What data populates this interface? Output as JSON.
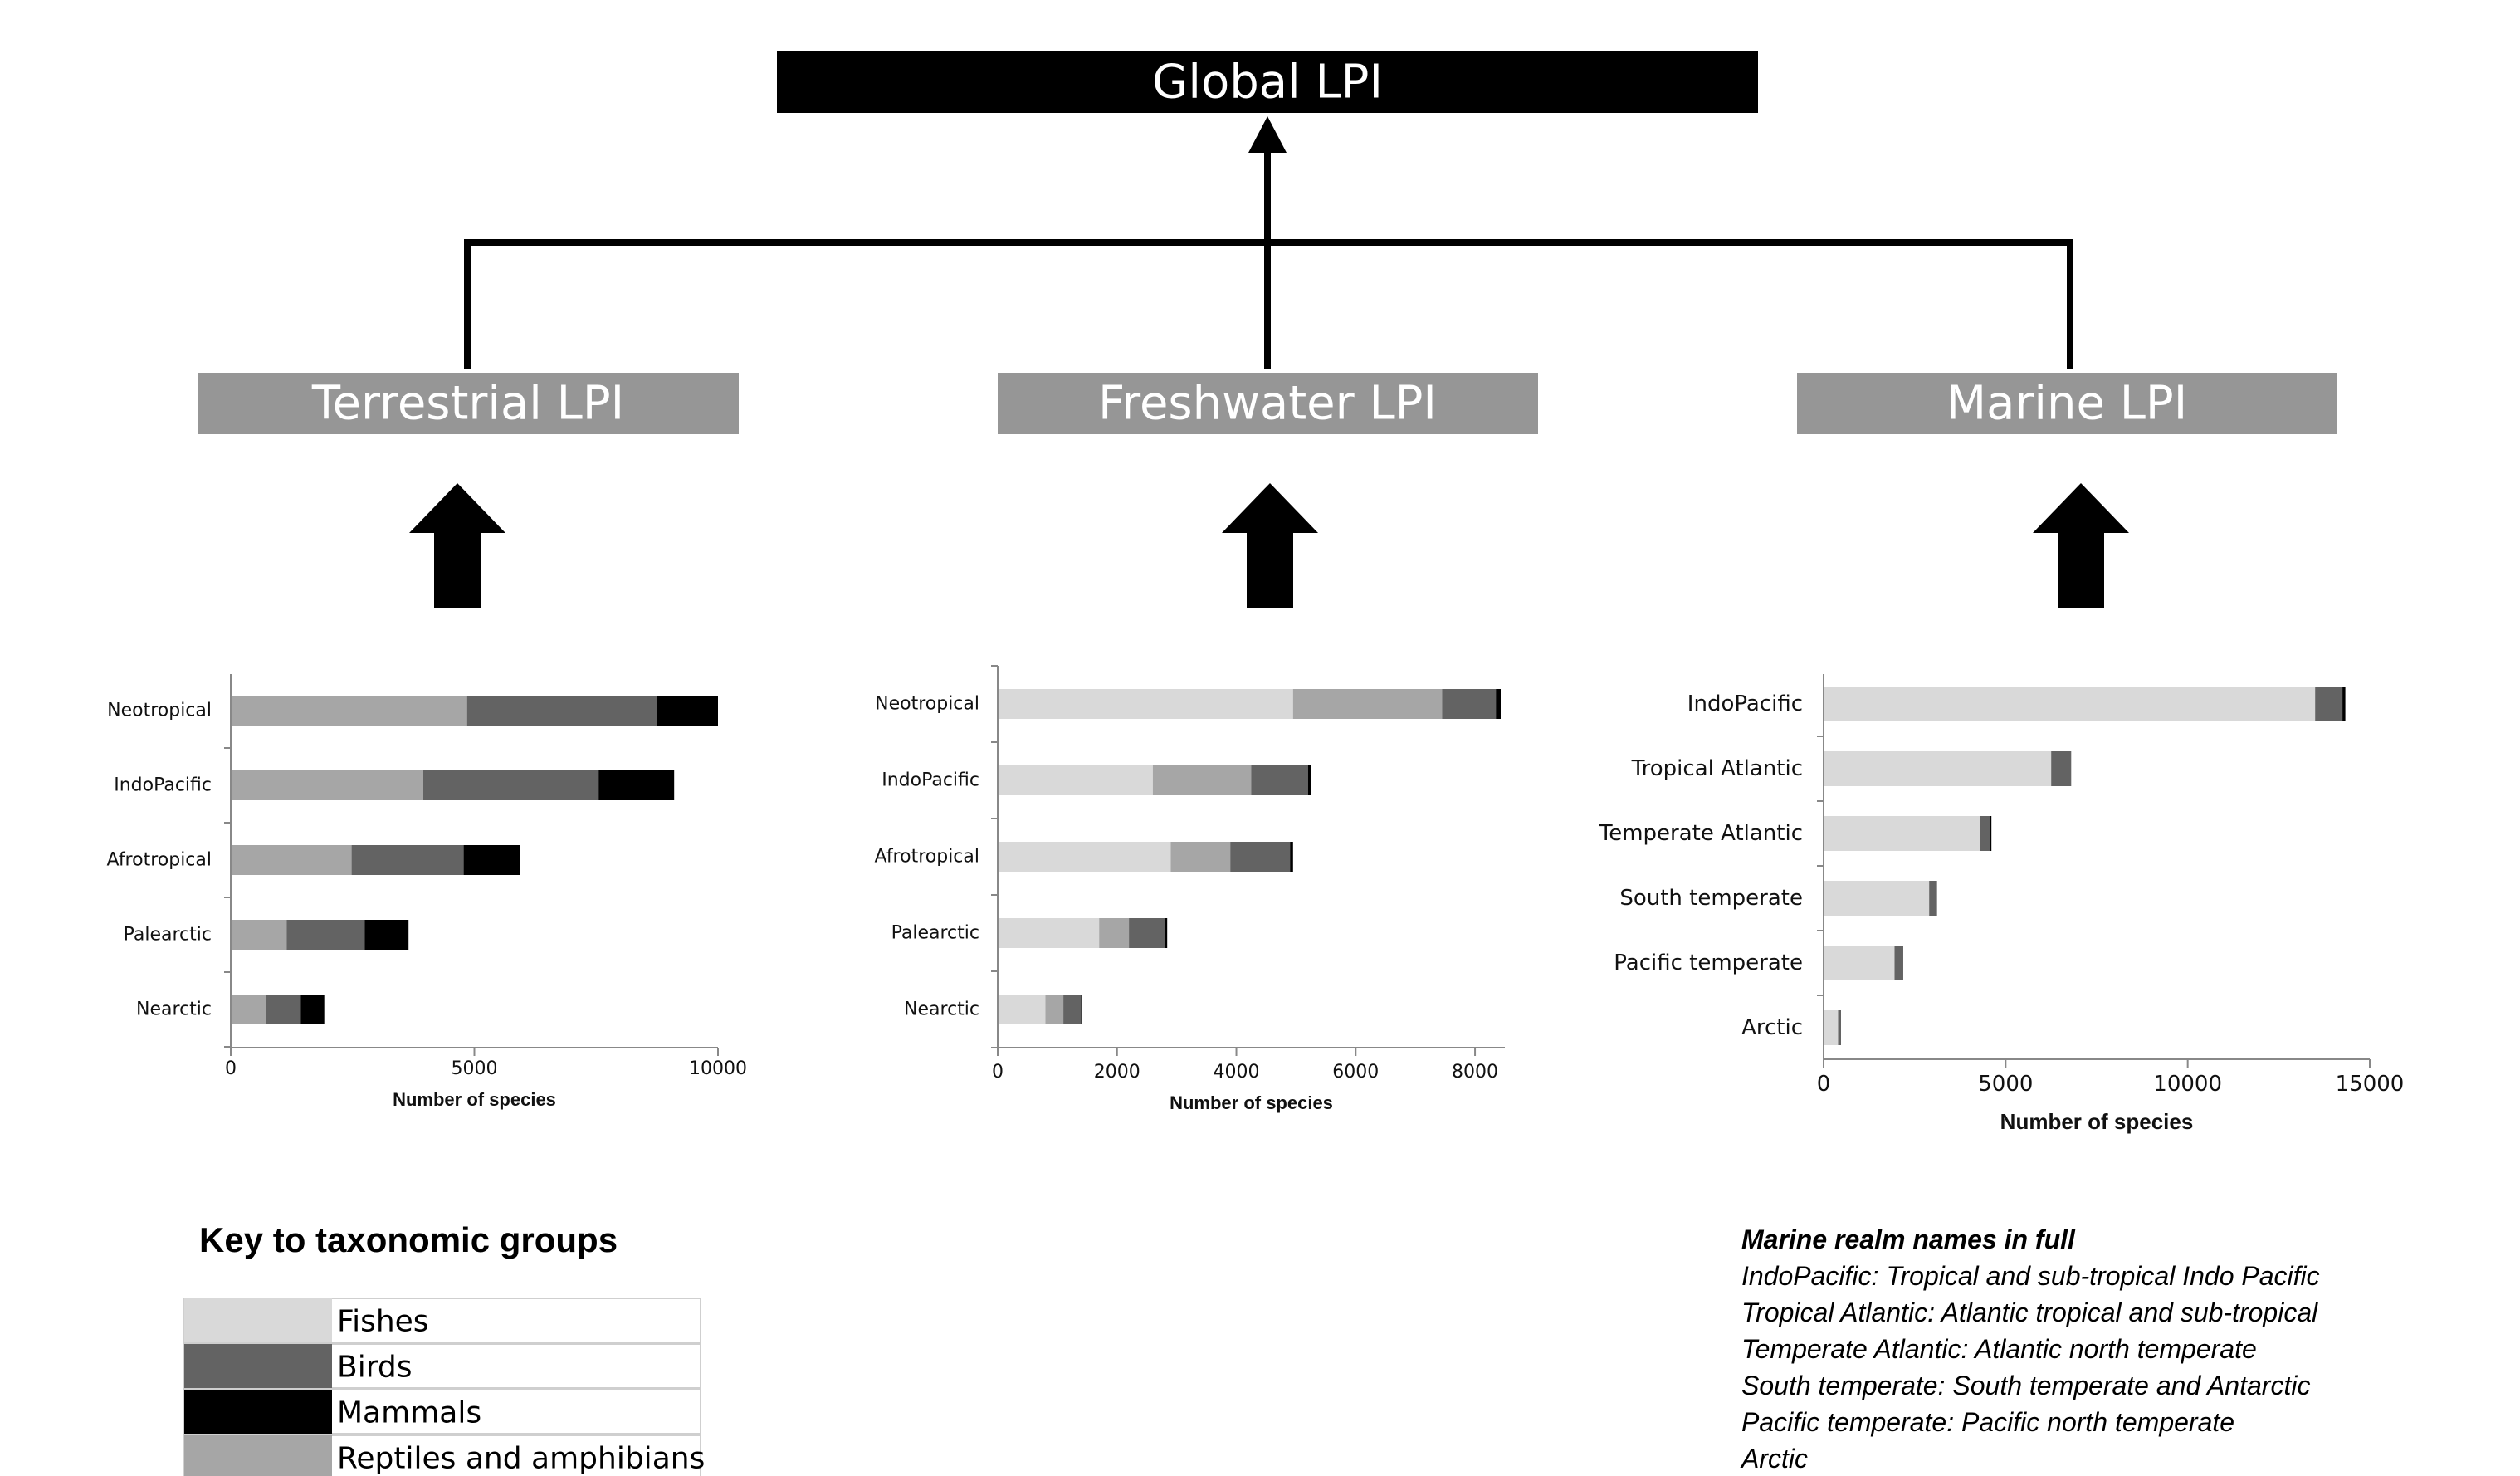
{
  "diagram": {
    "global_label": "Global LPI",
    "terrestrial_label": "Terrestrial LPI",
    "freshwater_label": "Freshwater LPI",
    "marine_label": "Marine LPI"
  },
  "colors": {
    "black": "#000000",
    "box_grey": "#969696",
    "fishes": "#d9d9d9",
    "birds": "#636363",
    "mammals": "#000000",
    "reptiles": "#a6a6a6"
  },
  "chart_data": [
    {
      "type": "bar",
      "orientation": "horizontal",
      "stacked": true,
      "categories": [
        "Neotropical",
        "IndoPacific",
        "Afrotropical",
        "Palearctic",
        "Nearctic"
      ],
      "series": [
        {
          "name": "Reptiles and amphibians",
          "values": [
            4850,
            3950,
            2480,
            1150,
            720
          ]
        },
        {
          "name": "Birds",
          "values": [
            3900,
            3600,
            2300,
            1600,
            720
          ]
        },
        {
          "name": "Mammals",
          "values": [
            1250,
            1550,
            1150,
            900,
            480
          ]
        }
      ],
      "xlabel": "Number of species",
      "xlim": [
        0,
        10000
      ],
      "xticks": [
        "0",
        "5000",
        "10000"
      ],
      "grid": false
    },
    {
      "type": "bar",
      "orientation": "horizontal",
      "stacked": true,
      "categories": [
        "Neotropical",
        "IndoPacific",
        "Afrotropical",
        "Palearctic",
        "Nearctic"
      ],
      "series": [
        {
          "name": "Fishes",
          "values": [
            4950,
            2600,
            2900,
            1700,
            800
          ]
        },
        {
          "name": "Reptiles and amphibians",
          "values": [
            2500,
            1650,
            1000,
            500,
            300
          ]
        },
        {
          "name": "Birds",
          "values": [
            900,
            950,
            1000,
            600,
            300
          ]
        },
        {
          "name": "Mammals",
          "values": [
            80,
            50,
            50,
            40,
            10
          ]
        }
      ],
      "xlabel": "Number of species",
      "xlim": [
        0,
        8500
      ],
      "xticks": [
        "0",
        "2000",
        "4000",
        "6000",
        "8000"
      ],
      "grid": false
    },
    {
      "type": "bar",
      "orientation": "horizontal",
      "stacked": true,
      "categories": [
        "IndoPacific",
        "Tropical Atlantic",
        "Temperate Atlantic",
        "South temperate",
        "Pacific temperate",
        "Arctic"
      ],
      "series": [
        {
          "name": "Fishes",
          "values": [
            13500,
            6250,
            4300,
            2900,
            1950,
            400
          ]
        },
        {
          "name": "Birds",
          "values": [
            750,
            550,
            280,
            180,
            200,
            80
          ]
        },
        {
          "name": "Mammals",
          "values": [
            80,
            0,
            30,
            30,
            30,
            0
          ]
        }
      ],
      "xlabel": "Number of species",
      "xlim": [
        0,
        15000
      ],
      "xticks": [
        "0",
        "5000",
        "10000",
        "15000"
      ],
      "grid": false
    }
  ],
  "key": {
    "title": "Key to taxonomic groups",
    "items": [
      {
        "label": "Fishes",
        "color": "#d9d9d9"
      },
      {
        "label": "Birds",
        "color": "#636363"
      },
      {
        "label": "Mammals",
        "color": "#000000"
      },
      {
        "label": "Reptiles and amphibians",
        "color": "#a6a6a6"
      }
    ]
  },
  "marine_names": {
    "title": "Marine realm names in full",
    "lines": [
      "IndoPacific: Tropical and sub-tropical Indo Pacific",
      "Tropical Atlantic: Atlantic tropical and sub-tropical",
      "Temperate Atlantic: Atlantic north temperate",
      "South temperate: South temperate and Antarctic",
      "Pacific temperate: Pacific north temperate",
      "Arctic"
    ]
  }
}
